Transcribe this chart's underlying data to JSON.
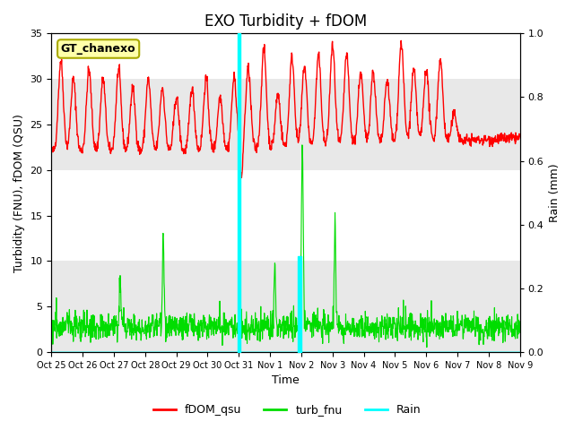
{
  "title": "EXO Turbidity + fDOM",
  "xlabel": "Time",
  "ylabel_left": "Turbidity (FNU), fDOM (QSU)",
  "ylabel_right": "Rain (mm)",
  "ylim_left": [
    0,
    35
  ],
  "ylim_right": [
    0.0,
    1.0
  ],
  "yticks_left": [
    0,
    5,
    10,
    15,
    20,
    25,
    30,
    35
  ],
  "yticks_right": [
    0.0,
    0.2,
    0.4,
    0.6,
    0.8,
    1.0
  ],
  "band_color": "#e8e8e8",
  "fdom_color": "#ff0000",
  "turb_color": "#00dd00",
  "rain_color": "#00ffff",
  "vline_color": "#00ffff",
  "label_box_text": "GT_chanexo",
  "label_box_facecolor": "#ffffaa",
  "label_box_edgecolor": "#aaaa00",
  "legend_labels": [
    "fDOM_qsu",
    "turb_fnu",
    "Rain"
  ],
  "legend_colors": [
    "#ff0000",
    "#00dd00",
    "#00ffff"
  ],
  "background_color": "#ffffff",
  "title_fontsize": 12,
  "axis_fontsize": 9,
  "tick_fontsize": 8,
  "x_tick_labels": [
    "Oct 25",
    "Oct 26",
    "Oct 27",
    "Oct 28",
    "Oct 29",
    "Oct 30",
    "Oct 31",
    "Nov 1",
    "Nov 2",
    "Nov 3",
    "Nov 4",
    "Nov 5",
    "Nov 6",
    "Nov 7",
    "Nov 8",
    "Nov 9"
  ]
}
